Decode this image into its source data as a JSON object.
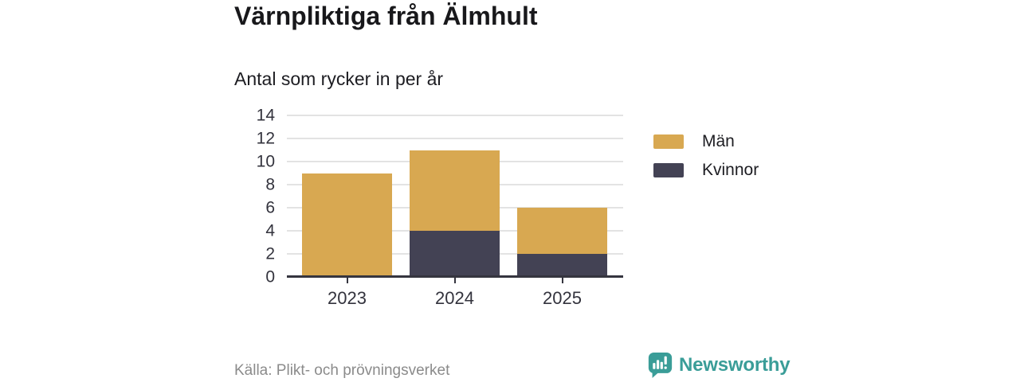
{
  "chart_data": {
    "type": "bar",
    "stacked": true,
    "title": "Värnpliktiga från Älmhult",
    "subtitle": "Antal som rycker in per år",
    "categories": [
      "2023",
      "2024",
      "2025"
    ],
    "series": [
      {
        "name": "Män",
        "color": "#d8a851",
        "values": [
          9,
          7,
          4
        ]
      },
      {
        "name": "Kvinnor",
        "color": "#434254",
        "values": [
          0,
          4,
          2
        ]
      }
    ],
    "totals": [
      9,
      11,
      6
    ],
    "ylim": [
      0,
      14
    ],
    "yticks": [
      0,
      2,
      4,
      6,
      8,
      10,
      12,
      14
    ],
    "xlabel": "",
    "ylabel": "",
    "grid": true,
    "legend_position": "right",
    "stack_bottom_series": "Kvinnor"
  },
  "footer": {
    "source": "Källa: Plikt- och prövningsverket",
    "brand": "Newsworthy"
  },
  "colors": {
    "men": "#d8a851",
    "women": "#434254",
    "brand_teal": "#3a9d98",
    "gridline": "#e3e3e3",
    "axis": "#35353f",
    "text": "#1d1d22",
    "muted_text": "#8b8b8b"
  }
}
